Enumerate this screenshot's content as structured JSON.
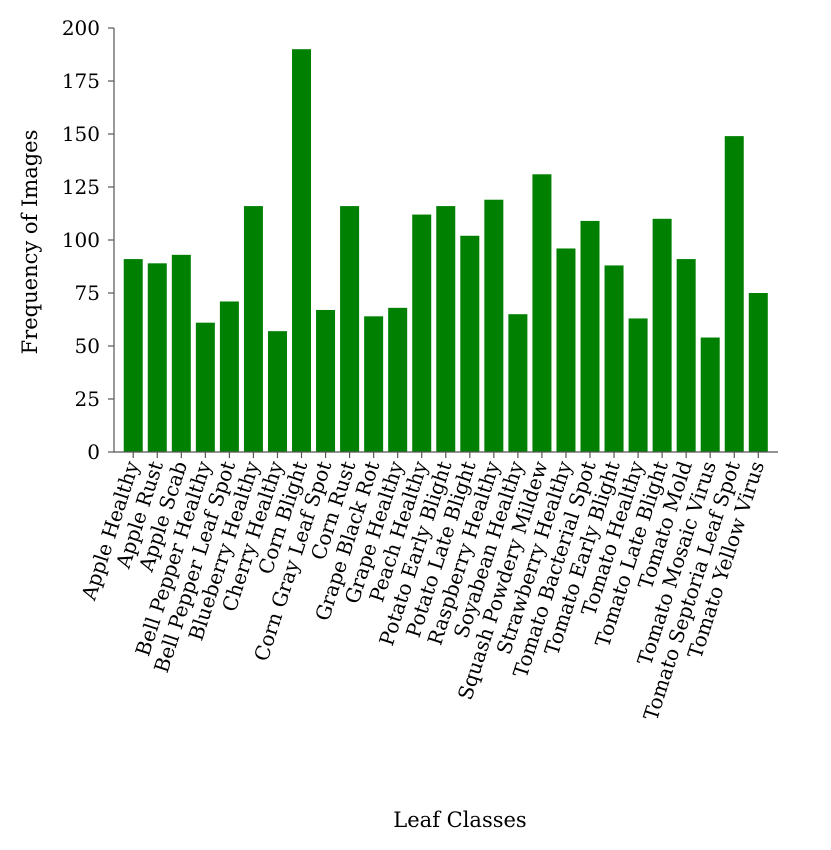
{
  "chart_data": {
    "type": "bar",
    "title": "",
    "xlabel": "Leaf Classes",
    "ylabel": "Frequency of Images",
    "ylim": [
      0,
      200
    ],
    "yticks": [
      0,
      25,
      50,
      75,
      100,
      125,
      150,
      175,
      200
    ],
    "bar_color": "#008000",
    "grid": false,
    "legend": "none",
    "categories": [
      "Apple Healthy",
      "Apple Rust",
      "Apple Scab",
      "Bell Pepper Healthy",
      "Bell Pepper Leaf Spot",
      "Blueberry Healthy",
      "Cherry Healthy",
      "Corn Blight",
      "Corn Gray Leaf Spot",
      "Corn Rust",
      "Grape Black Rot",
      "Grape Healthy",
      "Peach Healthy",
      "Potato Early Blight",
      "Potato Late Blight",
      "Raspberry Healthy",
      "Soyabean Healthy",
      "Squash Powdery Mildew",
      "Strawberry Healthy",
      "Tomato Bacterial Spot",
      "Tomato Early Blight",
      "Tomato Healthy",
      "Tomato Late Blight",
      "Tomato Mold",
      "Tomato Mosaic Virus",
      "Tomato Septoria Leaf Spot",
      "Tomato Yellow Virus"
    ],
    "values": [
      91,
      89,
      93,
      61,
      71,
      116,
      57,
      190,
      67,
      116,
      64,
      68,
      112,
      116,
      102,
      119,
      65,
      131,
      96,
      109,
      88,
      63,
      110,
      91,
      54,
      149,
      75
    ]
  }
}
